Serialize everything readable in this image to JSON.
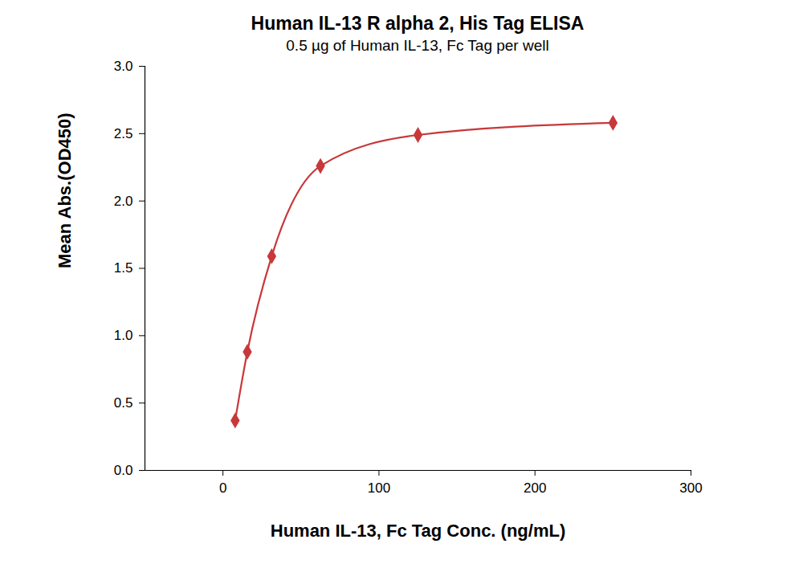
{
  "chart_data": {
    "type": "line",
    "title": "Human IL-13 R alpha 2, His Tag ELISA",
    "subtitle": "0.5 µg of Human IL-13, Fc Tag per well",
    "x_label": "Human IL-13, Fc Tag Conc. (ng/mL)",
    "y_label": "Mean Abs.(OD450)",
    "x": [
      7.8125,
      15.625,
      31.25,
      62.5,
      125,
      250
    ],
    "values": [
      0.37,
      0.88,
      1.59,
      2.26,
      2.49,
      2.58
    ],
    "color": "#c8383a",
    "marker": "diamond",
    "line_style": "solid",
    "grid": false,
    "xlim": [
      -50,
      300
    ],
    "xticks": [
      0,
      100,
      200,
      300
    ],
    "ylim": [
      0,
      3
    ],
    "yticks": [
      {
        "value": 0,
        "label": "0.0"
      },
      0.5,
      {
        "value": 1,
        "label": "1.0"
      },
      1.5,
      {
        "value": 2,
        "label": "2.0"
      },
      2.5,
      {
        "value": 3,
        "label": "3.0"
      }
    ]
  }
}
